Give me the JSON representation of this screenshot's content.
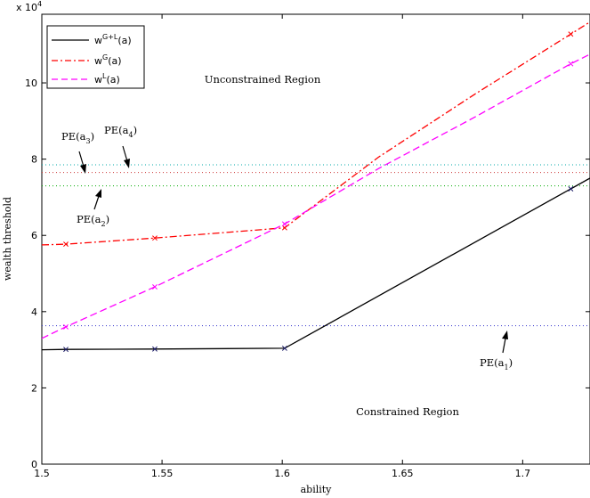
{
  "chart_data": {
    "type": "line",
    "multiplier": "x 10",
    "multiplier_exp": "4",
    "xlabel": "ability",
    "ylabel": "wealth threshold",
    "xlim": [
      1.5,
      1.728
    ],
    "ylim": [
      0,
      11.8
    ],
    "xticks": [
      "1.5",
      "1.55",
      "1.6",
      "1.65",
      "1.7"
    ],
    "yticks": [
      "0",
      "2",
      "4",
      "6",
      "8",
      "10"
    ],
    "grid": false,
    "legend_position": "top-left",
    "series": [
      {
        "name_base": "w",
        "name_sup": "G+L",
        "name_tail": "(a)",
        "color": "#000000",
        "dash": "solid",
        "x": [
          1.5,
          1.51,
          1.547,
          1.601,
          1.72,
          1.728
        ],
        "y": [
          3.0,
          3.01,
          3.02,
          3.04,
          7.22,
          7.5
        ],
        "markers": [
          [
            1.51,
            3.01
          ],
          [
            1.547,
            3.02
          ],
          [
            1.601,
            3.04
          ],
          [
            1.72,
            7.22
          ]
        ]
      },
      {
        "name_base": "w",
        "name_sup": "G",
        "name_tail": "(a)",
        "color": "#ff0000",
        "dash": "dashdot",
        "x": [
          1.5,
          1.51,
          1.547,
          1.601,
          1.64,
          1.68,
          1.72,
          1.728
        ],
        "y": [
          5.75,
          5.77,
          5.93,
          6.2,
          8.05,
          9.7,
          11.28,
          11.6
        ],
        "markers": [
          [
            1.51,
            5.77
          ],
          [
            1.547,
            5.93
          ],
          [
            1.601,
            6.2
          ],
          [
            1.72,
            11.28
          ]
        ]
      },
      {
        "name_base": "w",
        "name_sup": "L",
        "name_tail": "(a)",
        "color": "#ff00ff",
        "dash": "dashed",
        "x": [
          1.5,
          1.51,
          1.547,
          1.601,
          1.64,
          1.68,
          1.72,
          1.728
        ],
        "y": [
          3.3,
          3.6,
          4.65,
          6.3,
          7.75,
          9.1,
          10.5,
          10.75
        ],
        "markers": [
          [
            1.51,
            3.6
          ],
          [
            1.547,
            4.65
          ],
          [
            1.601,
            6.3
          ],
          [
            1.72,
            10.5
          ]
        ]
      }
    ],
    "reference_lines": [
      {
        "y": 3.63,
        "color": "#3333cc"
      },
      {
        "y": 7.3,
        "color": "#00aa00"
      },
      {
        "y": 7.65,
        "color": "#cc3333"
      },
      {
        "y": 7.85,
        "color": "#00aaaa"
      }
    ],
    "annotations": {
      "unconstrained": "Unconstrained Region",
      "constrained": "Constrained Region",
      "pe1_base": "PE(a",
      "pe1_sub": "1",
      "pe1_close": ")",
      "pe2_base": "PE(a",
      "pe2_sub": "2",
      "pe2_close": ")",
      "pe3_base": "PE(a",
      "pe3_sub": "3",
      "pe3_close": ")",
      "pe4_base": "PE(a",
      "pe4_sub": "4",
      "pe4_close": ")"
    }
  }
}
